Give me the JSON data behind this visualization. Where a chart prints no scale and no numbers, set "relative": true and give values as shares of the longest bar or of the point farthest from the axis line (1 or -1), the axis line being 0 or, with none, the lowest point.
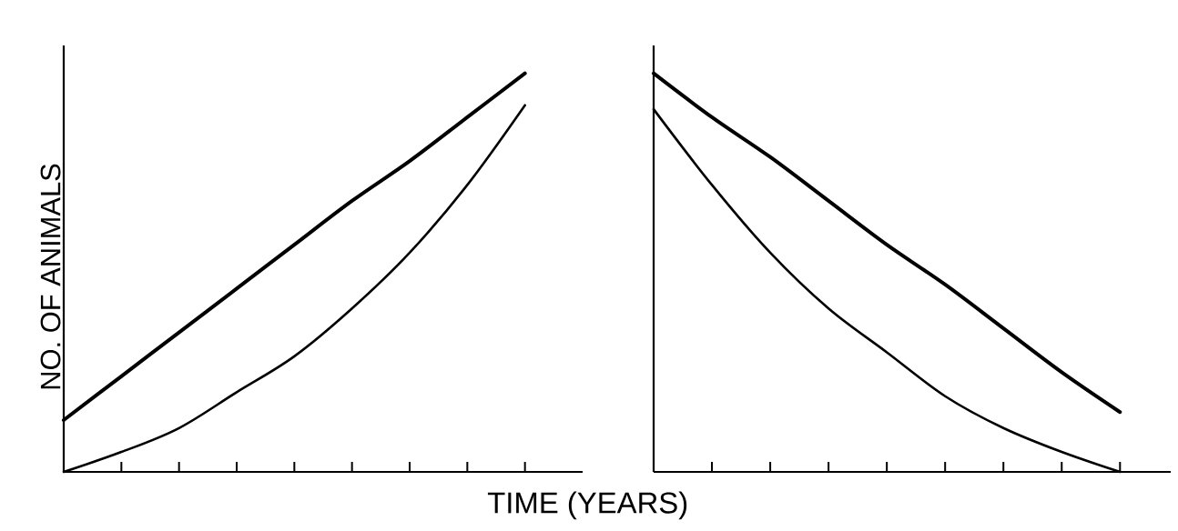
{
  "chart_data": [
    {
      "type": "line",
      "ylabel": "NO. OF ANIMALS",
      "xlabel": "TIME (YEARS)",
      "categories": [
        null,
        null,
        null,
        null,
        null,
        null,
        null,
        null,
        null
      ],
      "relative": true,
      "marker": "none",
      "line_style": "solid",
      "series": [
        {
          "color": "#000000",
          "values": [
            0.13,
            0.24,
            0.35,
            0.46,
            0.57,
            0.68,
            0.78,
            0.89,
            1.0
          ]
        },
        {
          "color": "#000000",
          "values": [
            0,
            0.05,
            0.11,
            0.2,
            0.29,
            0.41,
            0.55,
            0.72,
            0.92
          ]
        }
      ]
    },
    {
      "type": "line",
      "categories": [
        null,
        null,
        null,
        null,
        null,
        null,
        null,
        null,
        null
      ],
      "relative": true,
      "marker": "none",
      "line_style": "solid",
      "series": [
        {
          "color": "#000000",
          "values": [
            1.0,
            0.89,
            0.79,
            0.68,
            0.57,
            0.47,
            0.36,
            0.25,
            0.15
          ]
        },
        {
          "color": "#000000",
          "values": [
            0.91,
            0.72,
            0.55,
            0.41,
            0.3,
            0.19,
            0.11,
            0.05,
            0
          ]
        }
      ]
    }
  ]
}
